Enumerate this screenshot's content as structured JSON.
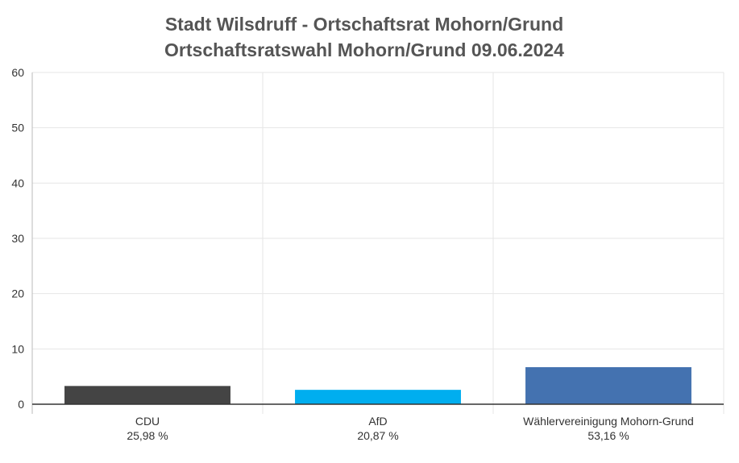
{
  "chart_data": {
    "type": "bar",
    "title": "Stadt Wilsdruff - Ortschaftsrat Mohorn/Grund",
    "subtitle": "Ortschaftsratswahl Mohorn/Grund 09.06.2024",
    "ylim": [
      0,
      60
    ],
    "yticks": [
      "0",
      "10",
      "20",
      "30",
      "40",
      "50",
      "60"
    ],
    "grid": true,
    "categories": [
      {
        "label": "CDU",
        "percent": "25,98 %"
      },
      {
        "label": "AfD",
        "percent": "20,87 %"
      },
      {
        "label": "Wählervereinigung Mohorn-Grund",
        "percent": "53,16 %"
      }
    ],
    "values": [
      3.3,
      2.6,
      6.7
    ],
    "colors": [
      "#444444",
      "#00aeef",
      "#4472b0"
    ]
  }
}
